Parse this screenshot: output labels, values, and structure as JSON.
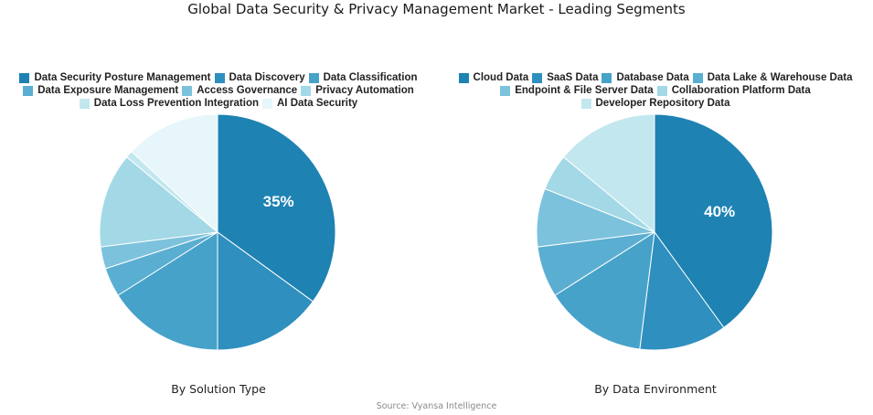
{
  "title": "Global Data Security & Privacy Management Market - Leading Segments",
  "source": "Source: Vyansa Intelligence",
  "chart_data": [
    {
      "type": "pie",
      "subtitle": "By Solution Type",
      "legend_position": "top",
      "categories": [
        "Data Security Posture Management",
        "Data Discovery",
        "Data Classification",
        "Data Exposure Management",
        "Access Governance",
        "Privacy Automation",
        "Data Loss Prevention Integration",
        "AI Data Security"
      ],
      "values": [
        35,
        15,
        16,
        4,
        3,
        13,
        1,
        13
      ],
      "data_labels": [
        "35%",
        "",
        "",
        "",
        "",
        "",
        "",
        ""
      ],
      "colors": [
        "#1e82b3",
        "#2f8fbe",
        "#46a2c9",
        "#5aaed1",
        "#7cc2dc",
        "#a3d8e6",
        "#c3e7ef",
        "#e6f6fa"
      ],
      "legend_rows": [
        3,
        3,
        2
      ]
    },
    {
      "type": "pie",
      "subtitle": "By Data Environment",
      "legend_position": "top",
      "categories": [
        "Cloud Data",
        "SaaS Data",
        "Database Data",
        "Data Lake & Warehouse Data",
        "Endpoint & File Server Data",
        "Collaboration Platform Data",
        "Developer Repository Data"
      ],
      "values": [
        40,
        12,
        14,
        7,
        8,
        5,
        14
      ],
      "data_labels": [
        "40%",
        "",
        "",
        "",
        "",
        "",
        ""
      ],
      "colors": [
        "#1e82b3",
        "#2f8fbe",
        "#46a2c9",
        "#5aaed1",
        "#7cc2dc",
        "#a3d8e6",
        "#c3e7ef"
      ],
      "legend_rows": [
        4,
        2,
        1
      ]
    }
  ]
}
